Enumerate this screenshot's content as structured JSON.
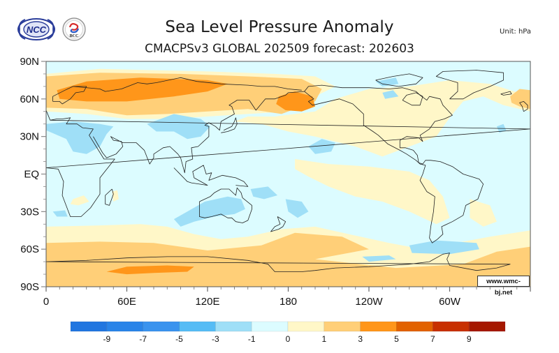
{
  "header": {
    "title": "Sea Level Pressure Anomaly",
    "subtitle": "CMACPSv3 GLOBAL 202509 forecast: 202603",
    "unit": "Unit:  hPa",
    "logos": [
      {
        "name": "NCC",
        "text": "NCC",
        "icon": "ncc-logo-icon"
      },
      {
        "name": "BCC",
        "text": "BCC",
        "icon": "bcc-logo-icon"
      }
    ]
  },
  "credit": "www.wmc-bj.net",
  "chart_data": {
    "type": "heatmap",
    "title": "Sea Level Pressure Anomaly",
    "subtitle": "CMACPSv3 GLOBAL 202509 forecast: 202603",
    "variable": "Sea level pressure anomaly",
    "unit": "hPa",
    "projection": "cylindrical equidistant, centered 180",
    "x_range_deg_east": [
      0,
      360
    ],
    "y_range_deg": [
      -90,
      90
    ],
    "x_ticks": [
      {
        "lon": 0,
        "label": "0"
      },
      {
        "lon": 60,
        "label": "60E"
      },
      {
        "lon": 120,
        "label": "120E"
      },
      {
        "lon": 180,
        "label": "180"
      },
      {
        "lon": 240,
        "label": "120W"
      },
      {
        "lon": 300,
        "label": "60W"
      }
    ],
    "y_ticks": [
      {
        "lat": 90,
        "label": "90N"
      },
      {
        "lat": 60,
        "label": "60N"
      },
      {
        "lat": 30,
        "label": "30N"
      },
      {
        "lat": 0,
        "label": "EQ"
      },
      {
        "lat": -30,
        "label": "30S"
      },
      {
        "lat": -60,
        "label": "60S"
      },
      {
        "lat": -90,
        "label": "90S"
      }
    ],
    "colorbar": {
      "placement": "bottom",
      "levels": [
        -9,
        -7,
        -5,
        -3,
        -1,
        0,
        1,
        3,
        5,
        7,
        9
      ],
      "level_labels": [
        "-9",
        "-7",
        "-5",
        "-3",
        "-1",
        "0",
        "1",
        "3",
        "5",
        "7",
        "9"
      ],
      "colors": [
        "#2176e0",
        "#2a84e8",
        "#3a93ee",
        "#56bcf5",
        "#9fdff7",
        "#dcfcff",
        "#fff7c8",
        "#ffcf78",
        "#ff961a",
        "#e26200",
        "#c83000",
        "#a51800"
      ]
    },
    "background_class": "-1 to 0",
    "regions": [
      {
        "name": "eurasia-positive-belt",
        "class": "0 to 1",
        "value_range": [
          0,
          1
        ],
        "poly": [
          [
            0,
            80
          ],
          [
            40,
            84
          ],
          [
            120,
            82
          ],
          [
            170,
            80
          ],
          [
            200,
            78
          ],
          [
            215,
            70
          ],
          [
            200,
            62
          ],
          [
            180,
            50
          ],
          [
            150,
            48
          ],
          [
            120,
            46
          ],
          [
            90,
            44
          ],
          [
            60,
            44
          ],
          [
            30,
            48
          ],
          [
            0,
            50
          ]
        ]
      },
      {
        "name": "eurasia-1to3",
        "class": "1 to 3",
        "value_range": [
          1,
          3
        ],
        "poly": [
          [
            0,
            78
          ],
          [
            40,
            81
          ],
          [
            100,
            80
          ],
          [
            150,
            78
          ],
          [
            190,
            76
          ],
          [
            205,
            68
          ],
          [
            200,
            58
          ],
          [
            175,
            48
          ],
          [
            150,
            52
          ],
          [
            120,
            50
          ],
          [
            90,
            48
          ],
          [
            60,
            47
          ],
          [
            30,
            52
          ],
          [
            0,
            53
          ]
        ]
      },
      {
        "name": "eurasia-3to5",
        "class": "3 to 5",
        "value_range": [
          3,
          5
        ],
        "poly": [
          [
            8,
            67
          ],
          [
            30,
            74
          ],
          [
            70,
            77
          ],
          [
            120,
            75
          ],
          [
            135,
            72
          ],
          [
            120,
            66
          ],
          [
            95,
            62
          ],
          [
            60,
            58
          ],
          [
            30,
            58
          ],
          [
            10,
            60
          ]
        ]
      },
      {
        "name": "bering-3to5",
        "class": "3 to 5",
        "value_range": [
          3,
          5
        ],
        "poly": [
          [
            173,
            62
          ],
          [
            185,
            66
          ],
          [
            198,
            62
          ],
          [
            200,
            54
          ],
          [
            190,
            50
          ],
          [
            178,
            51
          ],
          [
            171,
            56
          ]
        ]
      },
      {
        "name": "north-pacific-positive",
        "class": "0 to 1",
        "value_range": [
          0,
          1
        ],
        "poly": [
          [
            140,
            42
          ],
          [
            160,
            40
          ],
          [
            180,
            34
          ],
          [
            200,
            30
          ],
          [
            230,
            22
          ],
          [
            250,
            14
          ],
          [
            265,
            20
          ],
          [
            290,
            30
          ],
          [
            300,
            45
          ],
          [
            310,
            58
          ],
          [
            325,
            62
          ],
          [
            340,
            55
          ],
          [
            360,
            50
          ],
          [
            360,
            62
          ],
          [
            330,
            72
          ],
          [
            300,
            75
          ],
          [
            270,
            70
          ],
          [
            240,
            68
          ],
          [
            215,
            60
          ],
          [
            200,
            50
          ],
          [
            170,
            46
          ],
          [
            150,
            46
          ]
        ]
      },
      {
        "name": "iceland-positive",
        "class": "1 to 3",
        "value_range": [
          1,
          3
        ],
        "poly": [
          [
            345,
            62
          ],
          [
            352,
            68
          ],
          [
            360,
            67
          ],
          [
            360,
            52
          ],
          [
            352,
            54
          ],
          [
            346,
            57
          ]
        ]
      },
      {
        "name": "tropical-pacific-positive",
        "class": "0 to 1",
        "value_range": [
          0,
          1
        ],
        "poly": [
          [
            185,
            12
          ],
          [
            210,
            8
          ],
          [
            240,
            6
          ],
          [
            270,
            2
          ],
          [
            285,
            -5
          ],
          [
            295,
            -18
          ],
          [
            300,
            -35
          ],
          [
            290,
            -40
          ],
          [
            270,
            -30
          ],
          [
            250,
            -22
          ],
          [
            230,
            -18
          ],
          [
            210,
            -10
          ],
          [
            195,
            -2
          ],
          [
            185,
            4
          ]
        ]
      },
      {
        "name": "south-atlantic-positive",
        "class": "0 to 1",
        "value_range": [
          0,
          1
        ],
        "poly": [
          [
            315,
            -20
          ],
          [
            330,
            -25
          ],
          [
            335,
            -38
          ],
          [
            325,
            -42
          ],
          [
            315,
            -35
          ]
        ]
      },
      {
        "name": "africa-positive",
        "class": "0 to 1",
        "value_range": [
          0,
          1
        ],
        "poly": [
          [
            20,
            -20
          ],
          [
            28,
            -17
          ],
          [
            32,
            -22
          ],
          [
            24,
            -25
          ],
          [
            18,
            -24
          ]
        ]
      },
      {
        "name": "madagascar-positive",
        "class": "0 to 1",
        "value_range": [
          0,
          1
        ],
        "poly": [
          [
            49,
            -14
          ],
          [
            53,
            -13
          ],
          [
            54,
            -20
          ],
          [
            50,
            -22
          ]
        ]
      },
      {
        "name": "southern-ocean-0to1",
        "class": "0 to 1",
        "value_range": [
          0,
          1
        ],
        "poly": [
          [
            0,
            -42
          ],
          [
            40,
            -41
          ],
          [
            70,
            -40
          ],
          [
            90,
            -42
          ],
          [
            110,
            -48
          ],
          [
            130,
            -52
          ],
          [
            150,
            -50
          ],
          [
            175,
            -44
          ],
          [
            200,
            -42
          ],
          [
            225,
            -48
          ],
          [
            255,
            -55
          ],
          [
            280,
            -60
          ],
          [
            305,
            -55
          ],
          [
            330,
            -50
          ],
          [
            360,
            -45
          ],
          [
            360,
            -90
          ],
          [
            0,
            -90
          ]
        ]
      },
      {
        "name": "southern-ocean-1to3",
        "class": "1 to 3",
        "value_range": [
          1,
          3
        ],
        "poly": [
          [
            0,
            -55
          ],
          [
            40,
            -54
          ],
          [
            80,
            -55
          ],
          [
            120,
            -61
          ],
          [
            160,
            -57
          ],
          [
            185,
            -47
          ],
          [
            220,
            -50
          ],
          [
            240,
            -60
          ],
          [
            200,
            -68
          ],
          [
            260,
            -75
          ],
          [
            310,
            -72
          ],
          [
            335,
            -62
          ],
          [
            360,
            -58
          ],
          [
            360,
            -90
          ],
          [
            0,
            -90
          ]
        ]
      },
      {
        "name": "antarctic-3to5",
        "class": "3 to 5",
        "value_range": [
          3,
          5
        ],
        "poly": [
          [
            45,
            -78
          ],
          [
            60,
            -74
          ],
          [
            90,
            -73
          ],
          [
            110,
            -74
          ],
          [
            105,
            -78
          ],
          [
            80,
            -79
          ],
          [
            60,
            -80
          ]
        ]
      },
      {
        "name": "mediterranean-negative",
        "class": "-3 to -1",
        "value_range": [
          -3,
          -1
        ],
        "poly": [
          [
            0,
            40
          ],
          [
            20,
            42
          ],
          [
            40,
            40
          ],
          [
            50,
            38
          ],
          [
            45,
            32
          ],
          [
            40,
            22
          ],
          [
            30,
            16
          ],
          [
            20,
            18
          ],
          [
            15,
            28
          ],
          [
            0,
            35
          ]
        ]
      },
      {
        "name": "central-asia-negative",
        "class": "-3 to -1",
        "value_range": [
          -3,
          -1
        ],
        "poly": [
          [
            75,
            40
          ],
          [
            95,
            48
          ],
          [
            115,
            44
          ],
          [
            122,
            38
          ],
          [
            115,
            30
          ],
          [
            105,
            28
          ],
          [
            95,
            34
          ],
          [
            82,
            34
          ]
        ]
      },
      {
        "name": "north-pacific-negative",
        "class": "-3 to -1",
        "value_range": [
          -3,
          -1
        ],
        "poly": [
          [
            195,
            22
          ],
          [
            205,
            28
          ],
          [
            215,
            25
          ],
          [
            212,
            18
          ],
          [
            200,
            16
          ]
        ]
      },
      {
        "name": "arctic-canada-negative",
        "class": "-3 to -1",
        "value_range": [
          -3,
          -1
        ],
        "poly": [
          [
            245,
            74
          ],
          [
            260,
            77
          ],
          [
            262,
            72
          ],
          [
            250,
            70
          ]
        ]
      },
      {
        "name": "hudson-negative",
        "class": "-3 to -1",
        "value_range": [
          -3,
          -1
        ],
        "poly": [
          [
            250,
            65
          ],
          [
            258,
            67
          ],
          [
            262,
            62
          ],
          [
            252,
            60
          ]
        ]
      },
      {
        "name": "atlantic-negative",
        "class": "-3 to -1",
        "value_range": [
          -3,
          -1
        ],
        "poly": [
          [
            335,
            38
          ],
          [
            340,
            40
          ],
          [
            342,
            35
          ],
          [
            337,
            33
          ]
        ]
      },
      {
        "name": "australia-negative",
        "class": "-3 to -1",
        "value_range": [
          -3,
          -1
        ],
        "poly": [
          [
            118,
            -22
          ],
          [
            135,
            -18
          ],
          [
            145,
            -20
          ],
          [
            148,
            -28
          ],
          [
            140,
            -32
          ],
          [
            125,
            -34
          ],
          [
            110,
            -38
          ],
          [
            100,
            -42
          ],
          [
            95,
            -36
          ],
          [
            105,
            -30
          ]
        ]
      },
      {
        "name": "coral-sea-negative",
        "class": "-3 to -1",
        "value_range": [
          -3,
          -1
        ],
        "poly": [
          [
            152,
            -12
          ],
          [
            165,
            -10
          ],
          [
            172,
            -17
          ],
          [
            162,
            -20
          ],
          [
            154,
            -18
          ]
        ]
      },
      {
        "name": "south-pacific-negative",
        "class": "-3 to -1",
        "value_range": [
          -3,
          -1
        ],
        "poly": [
          [
            178,
            -20
          ],
          [
            190,
            -22
          ],
          [
            195,
            -30
          ],
          [
            187,
            -35
          ],
          [
            180,
            -30
          ]
        ]
      },
      {
        "name": "drake-passage-negative",
        "class": "-3 to -1",
        "value_range": [
          -3,
          -1
        ],
        "poly": [
          [
            270,
            -57
          ],
          [
            290,
            -53
          ],
          [
            320,
            -55
          ],
          [
            322,
            -60
          ],
          [
            300,
            -64
          ],
          [
            272,
            -63
          ]
        ]
      },
      {
        "name": "amundsen-negative",
        "class": "-3 to -1",
        "value_range": [
          -3,
          -1
        ],
        "poly": [
          [
            235,
            -66
          ],
          [
            255,
            -65
          ],
          [
            260,
            -68
          ],
          [
            240,
            -70
          ]
        ]
      },
      {
        "name": "south-indian-negative",
        "class": "-3 to -1",
        "value_range": [
          -3,
          -1
        ],
        "poly": [
          [
            5,
            -30
          ],
          [
            14,
            -29
          ],
          [
            16,
            -34
          ],
          [
            8,
            -34
          ]
        ]
      }
    ]
  }
}
